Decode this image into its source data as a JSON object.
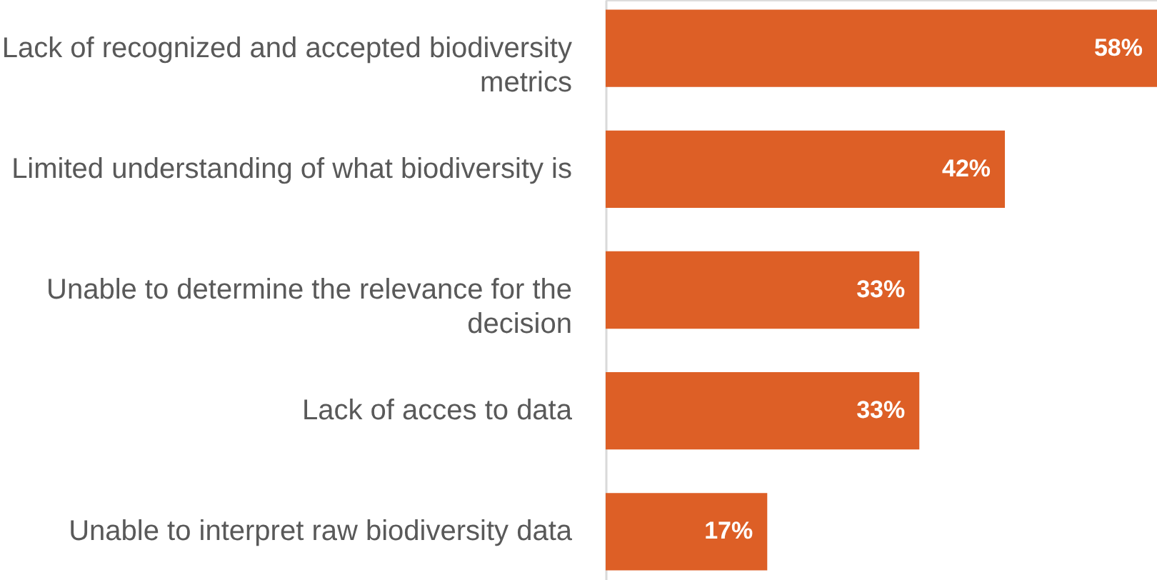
{
  "chart_data": {
    "type": "bar",
    "orientation": "horizontal",
    "categories": [
      "Lack of recognized and accepted biodiversity metrics",
      "Limited understanding of what biodiversity is",
      "Unable to determine the relevance for the decision",
      "Lack of acces to data",
      "Unable to interpret raw biodiversity data"
    ],
    "values": [
      58,
      42,
      33,
      33,
      17
    ],
    "value_labels": [
      "58%",
      "42%",
      "33%",
      "33%",
      "17%"
    ],
    "color": "#dd5f26"
  }
}
